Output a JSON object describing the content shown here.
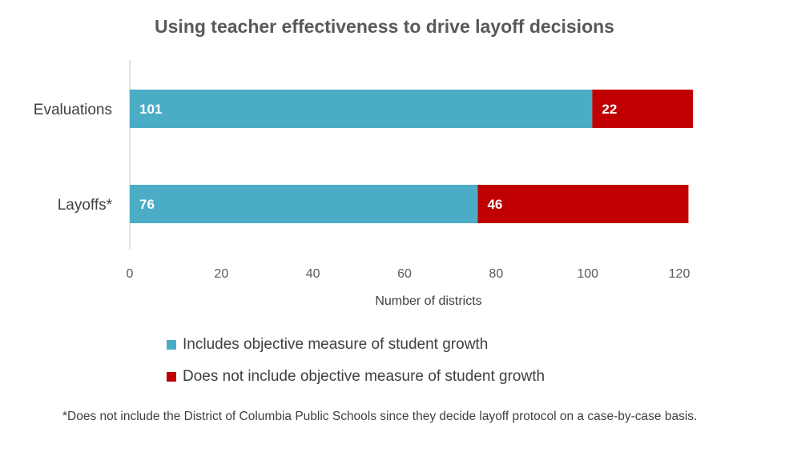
{
  "chart_data": {
    "type": "bar",
    "orientation": "horizontal",
    "stacked": true,
    "title": "Using teacher effectiveness to drive layoff decisions",
    "categories": [
      "Evaluations",
      "Layoffs*"
    ],
    "series": [
      {
        "name": "Includes objective measure of student growth",
        "values": [
          101,
          76
        ],
        "color": "#4BACC6"
      },
      {
        "name": "Does not include objective measure of student growth",
        "values": [
          22,
          46
        ],
        "color": "#C00000"
      }
    ],
    "xlabel": "Number of districts",
    "ylabel": "",
    "xlim": [
      0,
      120
    ],
    "xticks": [
      0,
      20,
      40,
      60,
      80,
      100,
      120
    ],
    "grid": false,
    "legend_placement": "bottom"
  },
  "footnote": "*Does not include the District of Columbia Public Schools since they decide layoff protocol on a case-by-case basis."
}
